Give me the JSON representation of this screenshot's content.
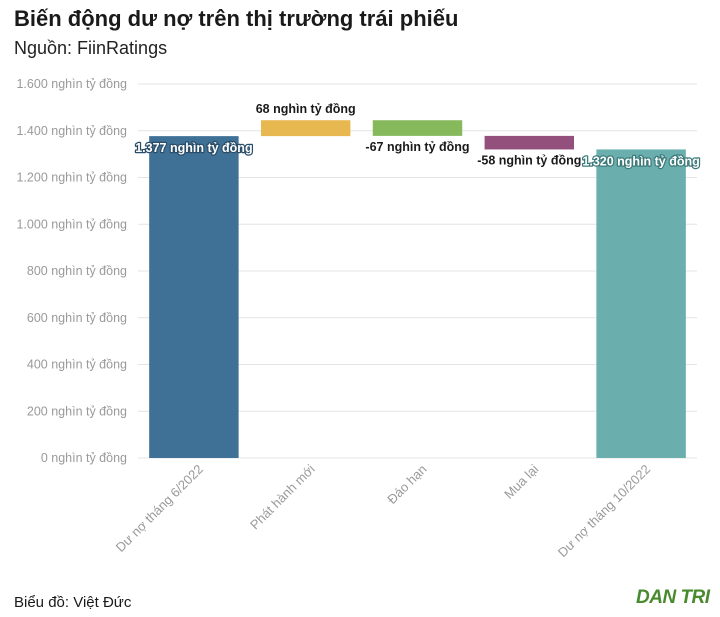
{
  "title": "Biến động dư nợ trên thị trường trái phiếu",
  "subtitle": "Nguồn: FiinRatings",
  "credit": "Biểu đồ: Việt Đức",
  "logo_text": "DAN TRI",
  "colors": {
    "grid": "#e4e4e4",
    "axis_text": "#9a9a9a",
    "label_dark": "#1a1a1a",
    "label_light": "#ffffff",
    "logo": "#4a8a2e"
  },
  "chart_data": {
    "type": "bar",
    "subtype": "waterfall",
    "title": "Biến động dư nợ trên thị trường trái phiếu",
    "xlabel": "",
    "ylabel": "",
    "ylim": [
      0,
      1600
    ],
    "yticks": [
      0,
      200,
      400,
      600,
      800,
      1000,
      1200,
      1400,
      1600
    ],
    "ytick_labels": [
      "0 nghìn tỷ đồng",
      "200 nghìn tỷ đồng",
      "400 nghìn tỷ đồng",
      "600 nghìn tỷ đồng",
      "800 nghìn tỷ đồng",
      "1.000 nghìn tỷ đồng",
      "1.200 nghìn tỷ đồng",
      "1.400 nghìn tỷ đồng",
      "1.600 nghìn tỷ đồng"
    ],
    "grid": true,
    "categories": [
      "Dư nợ tháng 6/2022",
      "Phát hành mới",
      "Đáo hạn",
      "Mua lại",
      "Dư nợ tháng 10/2022"
    ],
    "values": [
      1377,
      68,
      -67,
      -58,
      1320
    ],
    "kinds": [
      "total",
      "delta",
      "delta",
      "delta",
      "total"
    ],
    "data_labels": [
      "1.377 nghìn tỷ đồng",
      "68 nghìn tỷ đồng",
      "-67 nghìn tỷ đồng",
      "-58 nghìn tỷ đồng",
      "1.320 nghìn tỷ đồng"
    ],
    "bar_colors": [
      "#3f7096",
      "#e6b84f",
      "#86b85c",
      "#93507c",
      "#6aaeae"
    ]
  }
}
